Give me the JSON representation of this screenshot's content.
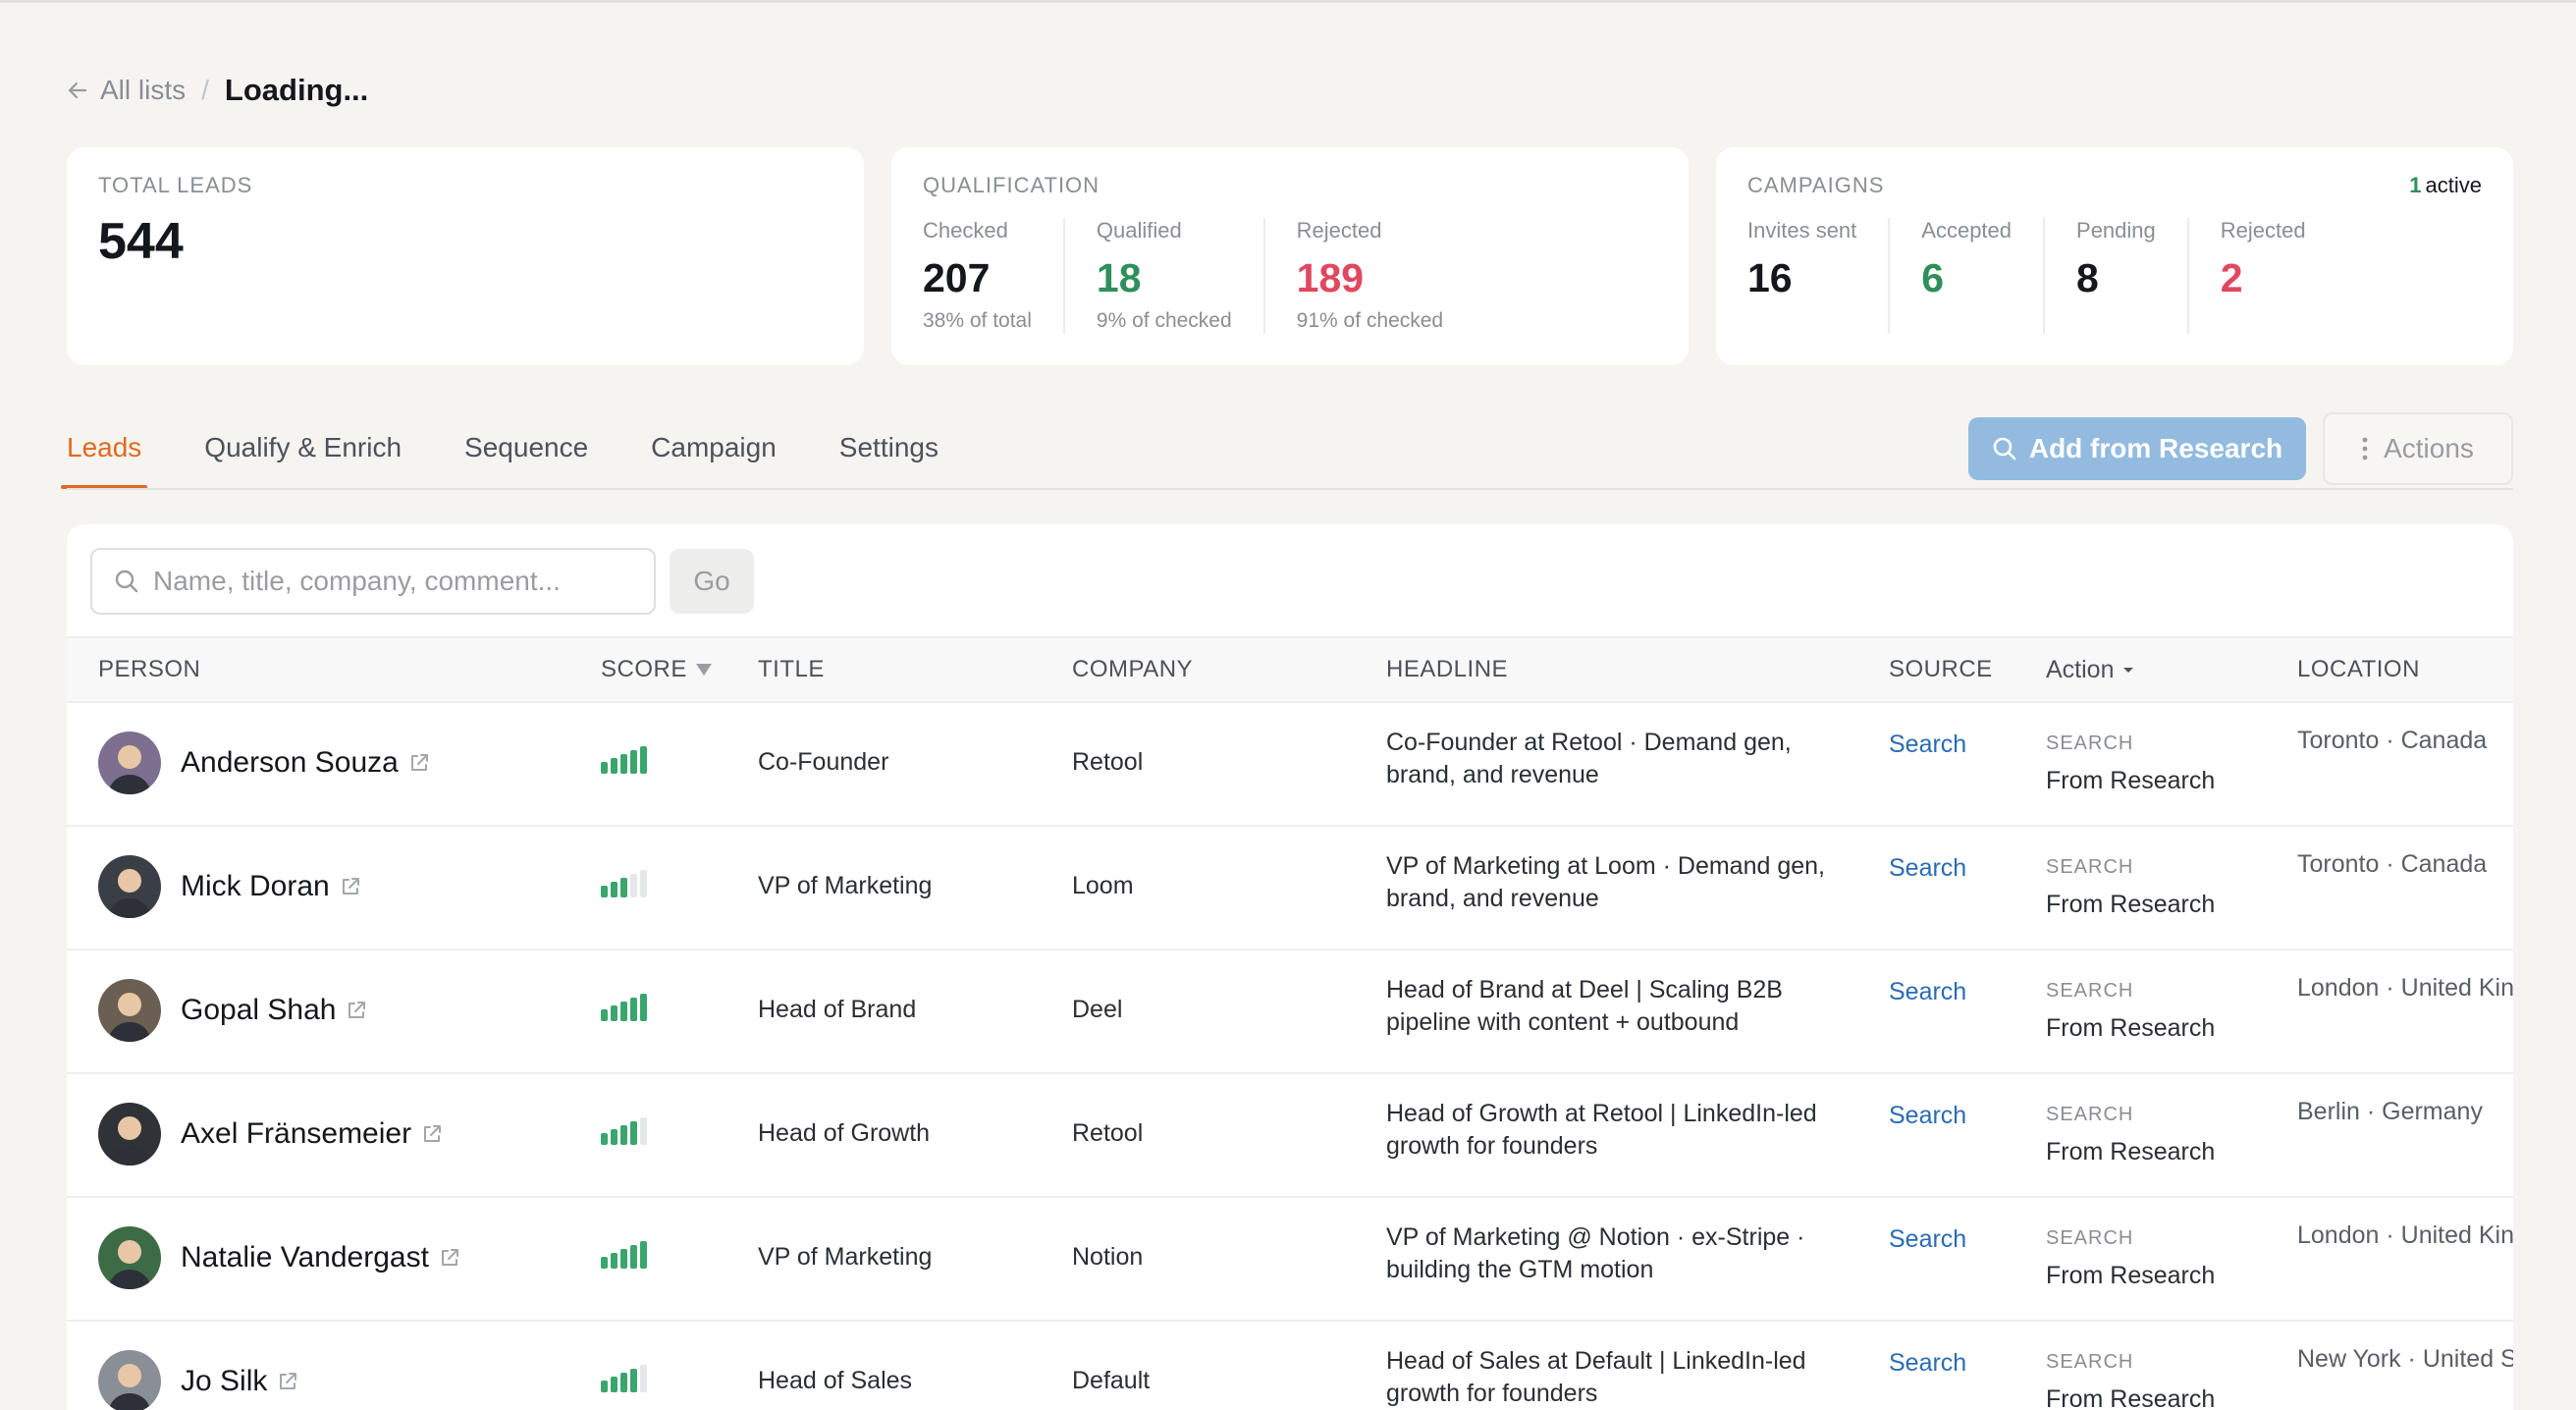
{
  "breadcrumb": {
    "back_label": "All lists",
    "separator": "/",
    "current": "Loading..."
  },
  "stats": {
    "total": {
      "label": "TOTAL LEADS",
      "value": "544"
    },
    "qualification": {
      "label": "QUALIFICATION",
      "metrics": [
        {
          "label": "Checked",
          "value": "207",
          "sub": "38% of total"
        },
        {
          "label": "Qualified",
          "value": "18",
          "sub": "9% of checked"
        },
        {
          "label": "Rejected",
          "value": "189",
          "sub": "91% of checked"
        }
      ]
    },
    "campaigns": {
      "label": "CAMPAIGNS",
      "active_count": "1",
      "active_label": "active",
      "metrics": [
        {
          "label": "Invites sent",
          "value": "16"
        },
        {
          "label": "Accepted",
          "value": "6"
        },
        {
          "label": "Pending",
          "value": "8"
        },
        {
          "label": "Rejected",
          "value": "2"
        }
      ]
    }
  },
  "tabs": [
    "Leads",
    "Qualify & Enrich",
    "Sequence",
    "Campaign",
    "Settings"
  ],
  "active_tab": "Leads",
  "toolbar": {
    "add_label": "Add from Research",
    "actions_label": "Actions"
  },
  "search": {
    "placeholder": "Name, title, company, comment...",
    "value": "",
    "go_label": "Go"
  },
  "table": {
    "headers": {
      "person": "PERSON",
      "score": "SCORE",
      "title": "TITLE",
      "company": "COMPANY",
      "headline": "HEADLINE",
      "source": "SOURCE",
      "action": "Action",
      "location": "LOCATION"
    },
    "rows": [
      {
        "name": "Anderson Souza",
        "score": 5,
        "title": "Co-Founder",
        "company": "Retool",
        "headline": "Co-Founder at Retool · Demand gen, brand, and revenue",
        "source": "Search",
        "action_type": "SEARCH",
        "action_detail": "From Research",
        "location": "Toronto · Canada",
        "avatar_color": "#7d6f8f"
      },
      {
        "name": "Mick Doran",
        "score": 3,
        "title": "VP of Marketing",
        "company": "Loom",
        "headline": "VP of Marketing at Loom · Demand gen, brand, and revenue",
        "source": "Search",
        "action_type": "SEARCH",
        "action_detail": "From Research",
        "location": "Toronto · Canada",
        "avatar_color": "#3a3f46"
      },
      {
        "name": "Gopal Shah",
        "score": 5,
        "title": "Head of Brand",
        "company": "Deel",
        "headline": "Head of Brand at Deel | Scaling B2B pipeline with content + outbound",
        "source": "Search",
        "action_type": "SEARCH",
        "action_detail": "From Research",
        "location": "London · United Kin",
        "avatar_color": "#6b5e52"
      },
      {
        "name": "Axel Fränsemeier",
        "score": 4,
        "title": "Head of Growth",
        "company": "Retool",
        "headline": "Head of Growth at Retool | LinkedIn-led growth for founders",
        "source": "Search",
        "action_type": "SEARCH",
        "action_detail": "From Research",
        "location": "Berlin · Germany",
        "avatar_color": "#2f3236"
      },
      {
        "name": "Natalie Vandergast",
        "score": 5,
        "title": "VP of Marketing",
        "company": "Notion",
        "headline": "VP of Marketing @ Notion · ex-Stripe · building the GTM motion",
        "source": "Search",
        "action_type": "SEARCH",
        "action_detail": "From Research",
        "location": "London · United Kin",
        "avatar_color": "#3d6b45"
      },
      {
        "name": "Jo Silk",
        "score": 4,
        "title": "Head of Sales",
        "company": "Default",
        "headline": "Head of Sales at Default | LinkedIn-led growth for founders",
        "source": "Search",
        "action_type": "SEARCH",
        "action_detail": "From Research",
        "location": "New York · United S",
        "avatar_color": "#8a8f97"
      }
    ]
  }
}
